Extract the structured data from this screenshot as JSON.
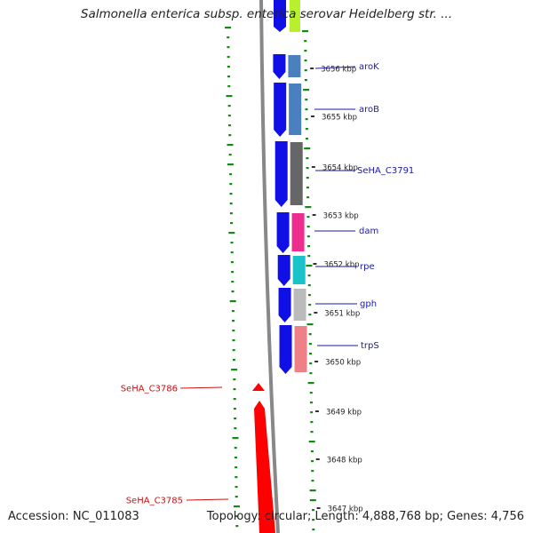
{
  "title": "Salmonella enterica subsp. enterica serovar Heidelberg str. ...",
  "accession": "Accession: NC_011083",
  "summary": "Topology: circular; Length: 4,888,768 bp; Genes: 4,756",
  "colors": {
    "forward_cds": "#1010e6",
    "reverse_cds": "#ff0000",
    "backbone": "#888888",
    "gc_ticks": "#138a13",
    "forward_label": "#1a1aa8",
    "reverse_label": "#cc1111"
  },
  "ruler": [
    {
      "label": "3656 kbp"
    },
    {
      "label": "3655 kbp"
    },
    {
      "label": "3654 kbp"
    },
    {
      "label": "3653 kbp"
    },
    {
      "label": "3652 kbp"
    },
    {
      "label": "3651 kbp"
    },
    {
      "label": "3650 kbp"
    },
    {
      "label": "3649 kbp"
    },
    {
      "label": "3648 kbp"
    },
    {
      "label": "3647 kbp"
    }
  ],
  "forward_genes": [
    {
      "label": "aroK",
      "cog_color": "#4a7fc0"
    },
    {
      "label": "aroB",
      "cog_color": "#4a7fc0"
    },
    {
      "label": "SeHA_C3791",
      "cog_color": "#666666"
    },
    {
      "label": "dam",
      "cog_color": "#ee2c8e"
    },
    {
      "label": "rpe",
      "cog_color": "#19c3c9"
    },
    {
      "label": "gph",
      "cog_color": "#bbbbbb"
    },
    {
      "label": "trpS",
      "cog_color": "#ee8088"
    }
  ],
  "reverse_genes": [
    {
      "label": "SeHA_C3786"
    },
    {
      "label": "SeHA_C3785"
    }
  ]
}
